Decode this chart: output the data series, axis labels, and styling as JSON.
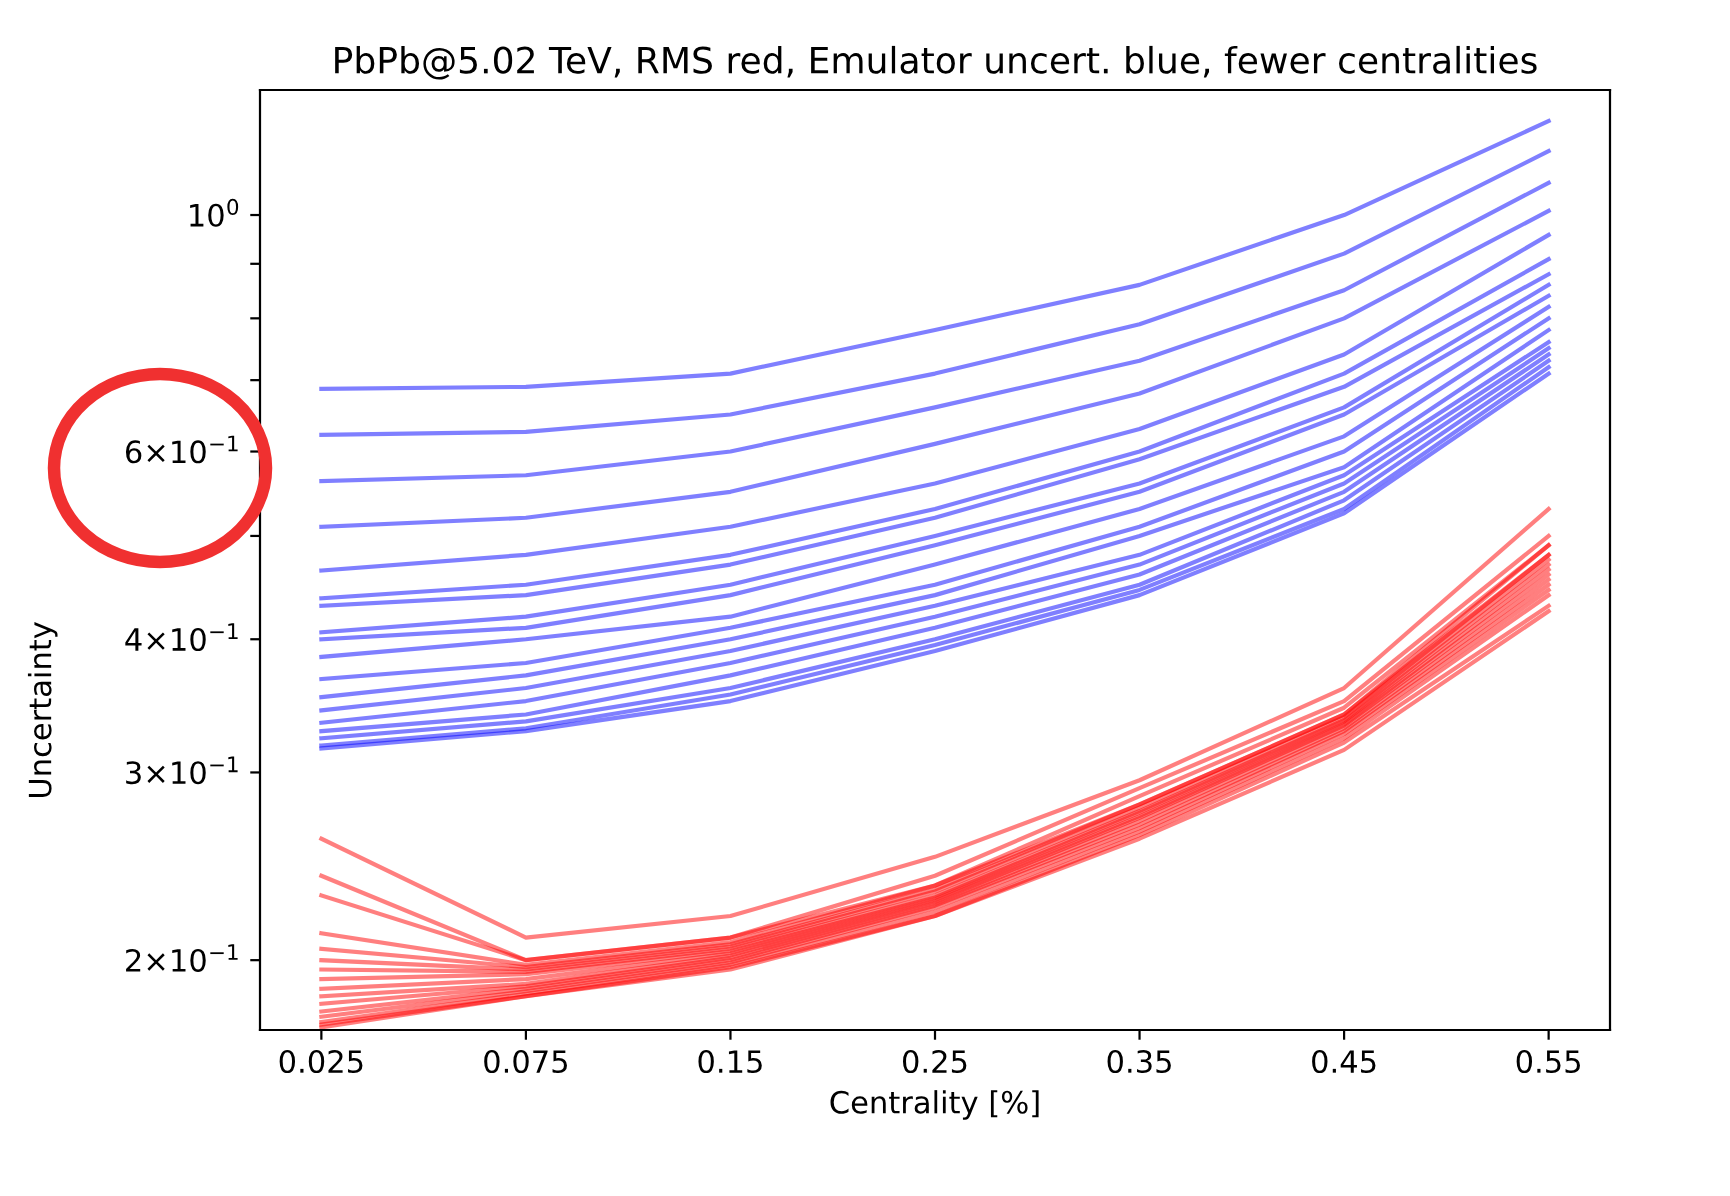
{
  "chart_data": {
    "type": "line",
    "title": "PbPb@5.02 TeV, RMS red, Emulator uncert. blue, fewer centralities",
    "xlabel": "Centrality [%]",
    "ylabel": "Uncertainty",
    "log": "y",
    "grid": false,
    "legend": false,
    "marker": "none",
    "line_style": "solid",
    "categories": [
      "0.025",
      "0.075",
      "0.15",
      "0.25",
      "0.35",
      "0.45",
      "0.55"
    ],
    "ylim": [
      0.172,
      1.31
    ],
    "yticks": [
      {
        "value": 0.2,
        "label": "2×10$^{−1}$"
      },
      {
        "value": 0.3,
        "label": "3×10$^{−1}$"
      },
      {
        "value": 0.4,
        "label": "4×10$^{−1}$"
      },
      {
        "value": 0.5,
        "label": null
      },
      {
        "value": 0.6,
        "label": "6×10$^{−1}$"
      },
      {
        "value": 0.7,
        "label": null
      },
      {
        "value": 0.8,
        "label": null
      },
      {
        "value": 0.9,
        "label": null
      },
      {
        "value": 1,
        "label": "10$^{0}$"
      }
    ],
    "series": [
      {
        "color": "#0000ff",
        "values": [
          0.687,
          0.69,
          0.71,
          0.78,
          0.86,
          1.0,
          1.225
        ]
      },
      {
        "color": "#0000ff",
        "values": [
          0.622,
          0.626,
          0.65,
          0.71,
          0.79,
          0.92,
          1.148
        ]
      },
      {
        "color": "#0000ff",
        "values": [
          0.563,
          0.57,
          0.6,
          0.66,
          0.73,
          0.85,
          1.072
        ]
      },
      {
        "color": "#0000ff",
        "values": [
          0.51,
          0.52,
          0.55,
          0.61,
          0.68,
          0.8,
          1.009
        ]
      },
      {
        "color": "#0000ff",
        "values": [
          0.464,
          0.48,
          0.51,
          0.56,
          0.63,
          0.74,
          0.958
        ]
      },
      {
        "color": "#0000ff",
        "values": [
          0.437,
          0.45,
          0.48,
          0.53,
          0.6,
          0.71,
          0.909
        ]
      },
      {
        "color": "#0000ff",
        "values": [
          0.43,
          0.44,
          0.47,
          0.52,
          0.59,
          0.69,
          0.88
        ]
      },
      {
        "color": "#0000ff",
        "values": [
          0.406,
          0.42,
          0.45,
          0.5,
          0.56,
          0.66,
          0.86
        ]
      },
      {
        "color": "#0000ff",
        "values": [
          0.4,
          0.41,
          0.44,
          0.49,
          0.55,
          0.65,
          0.84
        ]
      },
      {
        "color": "#0000ff",
        "values": [
          0.385,
          0.4,
          0.42,
          0.47,
          0.53,
          0.62,
          0.82
        ]
      },
      {
        "color": "#0000ff",
        "values": [
          0.367,
          0.38,
          0.41,
          0.45,
          0.51,
          0.6,
          0.8
        ]
      },
      {
        "color": "#0000ff",
        "values": [
          0.353,
          0.37,
          0.4,
          0.44,
          0.5,
          0.58,
          0.78
        ]
      },
      {
        "color": "#0000ff",
        "values": [
          0.343,
          0.36,
          0.39,
          0.43,
          0.48,
          0.57,
          0.76
        ]
      },
      {
        "color": "#0000ff",
        "values": [
          0.334,
          0.35,
          0.38,
          0.42,
          0.47,
          0.56,
          0.75
        ]
      },
      {
        "color": "#0000ff",
        "values": [
          0.328,
          0.34,
          0.37,
          0.41,
          0.46,
          0.55,
          0.74
        ]
      },
      {
        "color": "#0000ff",
        "values": [
          0.323,
          0.335,
          0.36,
          0.4,
          0.45,
          0.54,
          0.73
        ]
      },
      {
        "color": "#0000ff",
        "values": [
          0.318,
          0.33,
          0.355,
          0.395,
          0.445,
          0.53,
          0.72
        ]
      },
      {
        "color": "#0000ff",
        "values": [
          0.316,
          0.328,
          0.35,
          0.39,
          0.44,
          0.525,
          0.71
        ]
      },
      {
        "color": "#ff0000",
        "values": [
          0.26,
          0.21,
          0.22,
          0.25,
          0.295,
          0.36,
          0.53
        ]
      },
      {
        "color": "#ff0000",
        "values": [
          0.24,
          0.2,
          0.21,
          0.24,
          0.29,
          0.35,
          0.5
        ]
      },
      {
        "color": "#ff0000",
        "values": [
          0.23,
          0.2,
          0.21,
          0.235,
          0.285,
          0.345,
          0.49
        ]
      },
      {
        "color": "#ff0000",
        "values": [
          0.212,
          0.198,
          0.208,
          0.235,
          0.28,
          0.34,
          0.49
        ]
      },
      {
        "color": "#ff0000",
        "values": [
          0.205,
          0.197,
          0.207,
          0.233,
          0.28,
          0.34,
          0.48
        ]
      },
      {
        "color": "#ff0000",
        "values": [
          0.2,
          0.196,
          0.206,
          0.232,
          0.278,
          0.338,
          0.48
        ]
      },
      {
        "color": "#ff0000",
        "values": [
          0.196,
          0.195,
          0.205,
          0.23,
          0.276,
          0.336,
          0.475
        ]
      },
      {
        "color": "#ff0000",
        "values": [
          0.192,
          0.194,
          0.204,
          0.229,
          0.275,
          0.335,
          0.47
        ]
      },
      {
        "color": "#ff0000",
        "values": [
          0.188,
          0.192,
          0.203,
          0.228,
          0.273,
          0.333,
          0.465
        ]
      },
      {
        "color": "#ff0000",
        "values": [
          0.185,
          0.19,
          0.202,
          0.227,
          0.272,
          0.332,
          0.46
        ]
      },
      {
        "color": "#ff0000",
        "values": [
          0.182,
          0.189,
          0.201,
          0.226,
          0.27,
          0.33,
          0.455
        ]
      },
      {
        "color": "#ff0000",
        "values": [
          0.179,
          0.188,
          0.2,
          0.225,
          0.268,
          0.328,
          0.45
        ]
      },
      {
        "color": "#ff0000",
        "values": [
          0.177,
          0.187,
          0.199,
          0.224,
          0.266,
          0.326,
          0.445
        ]
      },
      {
        "color": "#ff0000",
        "values": [
          0.175,
          0.186,
          0.198,
          0.222,
          0.264,
          0.323,
          0.44
        ]
      },
      {
        "color": "#ff0000",
        "values": [
          0.174,
          0.185,
          0.197,
          0.22,
          0.262,
          0.32,
          0.43
        ]
      },
      {
        "color": "#ff0000",
        "values": [
          0.173,
          0.185,
          0.196,
          0.22,
          0.26,
          0.315,
          0.425
        ]
      }
    ]
  }
}
